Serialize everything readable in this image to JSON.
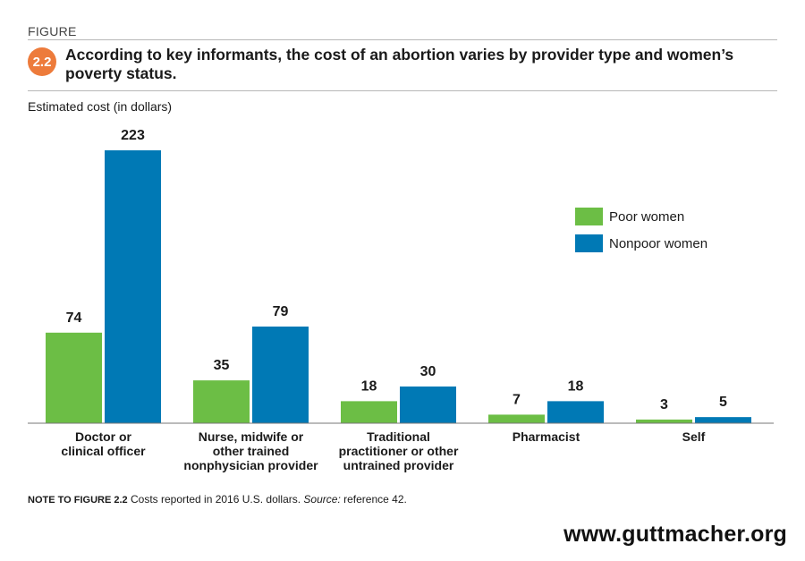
{
  "header": {
    "kicker": "FIGURE",
    "badge": "2.2",
    "title": "According to key informants, the cost of an abortion varies by provider type and women’s poverty status."
  },
  "chart_data": {
    "type": "bar",
    "title": "According to key informants, the cost of an abortion varies by provider type and women’s poverty status.",
    "xlabel": "",
    "ylabel": "Estimated cost (in dollars)",
    "ylim": [
      0,
      223
    ],
    "grid": false,
    "legend_position": "right",
    "categories": [
      [
        "Doctor or",
        "clinical officer"
      ],
      [
        "Nurse, midwife or",
        "other trained",
        "nonphysician provider"
      ],
      [
        "Traditional",
        "practitioner or other",
        "untrained provider"
      ],
      [
        "Pharmacist"
      ],
      [
        "Self"
      ]
    ],
    "series": [
      {
        "name": "Poor women",
        "color": "#6cbe45",
        "values": [
          74,
          35,
          18,
          7,
          3
        ]
      },
      {
        "name": "Nonpoor women",
        "color": "#0079b5",
        "values": [
          223,
          79,
          30,
          18,
          5
        ]
      }
    ]
  },
  "footer": {
    "note_label": "NOTE TO FIGURE 2.2",
    "note_text": " Costs reported in 2016 U.S. dollars. ",
    "source_label": "Source:",
    "source_text": " reference 42.",
    "website": "www.guttmacher.org"
  }
}
